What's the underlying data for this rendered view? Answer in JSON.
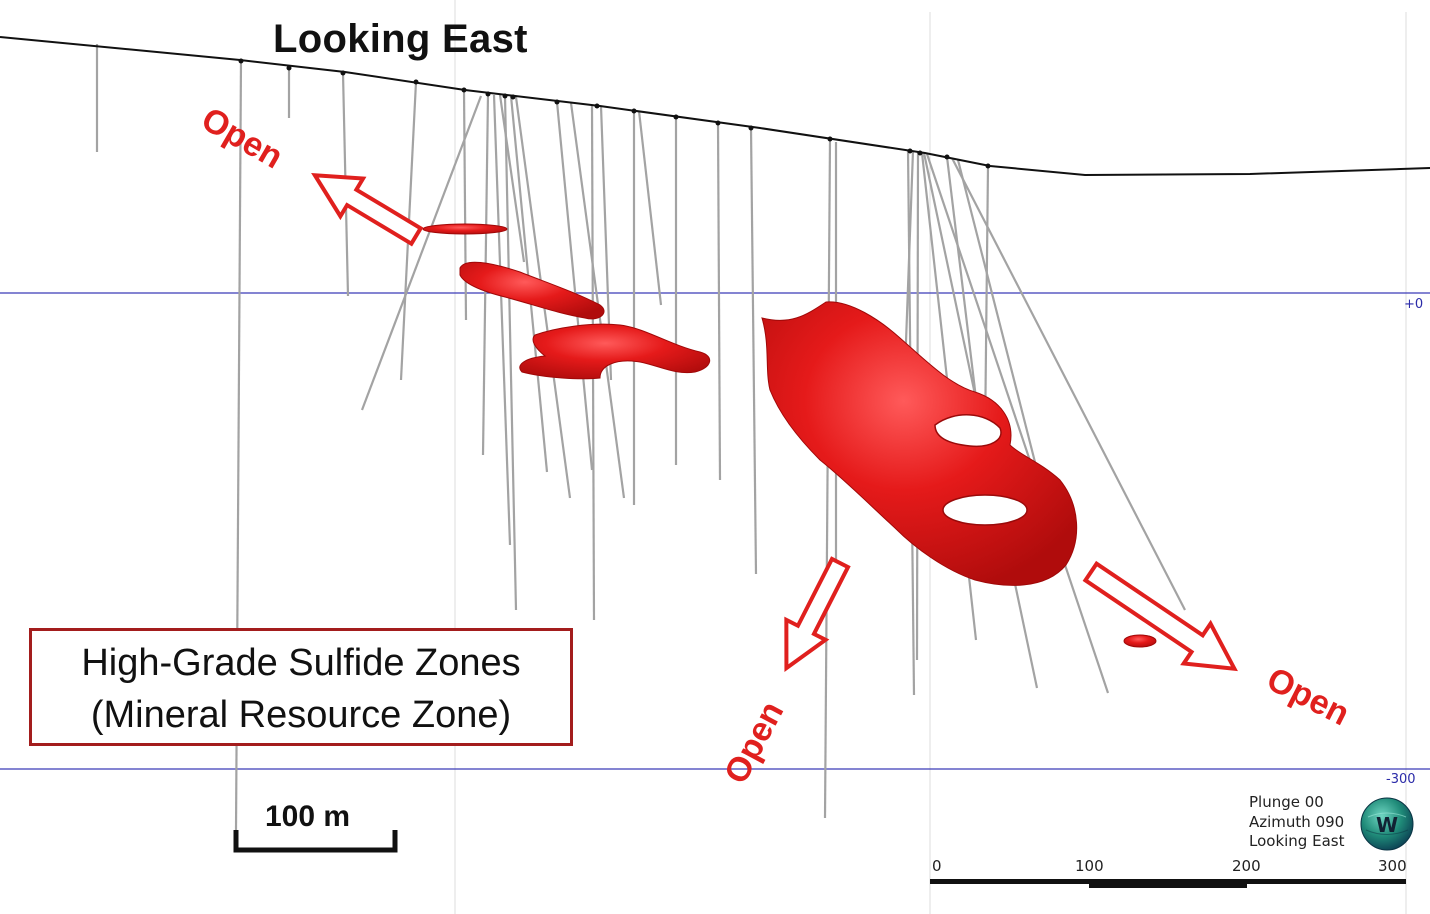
{
  "title": "Looking East",
  "legend": {
    "line1": "High-Grade Sulfide Zones",
    "line2": "(Mineral Resource Zone)"
  },
  "scale_bar": {
    "label": "100 m"
  },
  "open_labels": [
    "Open",
    "Open",
    "Open"
  ],
  "elevation_planes": {
    "upper": "+0",
    "lower": "-300"
  },
  "view_info": {
    "plunge": "Plunge 00",
    "azimuth": "Azimuth 090",
    "looking": "Looking East"
  },
  "axis_ticks": [
    "0",
    "100",
    "200",
    "300"
  ],
  "globe_icon": "compass-globe-icon",
  "colors": {
    "orebody": "#e01818",
    "arrow": "#e0201e",
    "plane": "#2a2aa8",
    "drillhole": "#a3a3a3",
    "legend_border": "#a31d1d"
  }
}
